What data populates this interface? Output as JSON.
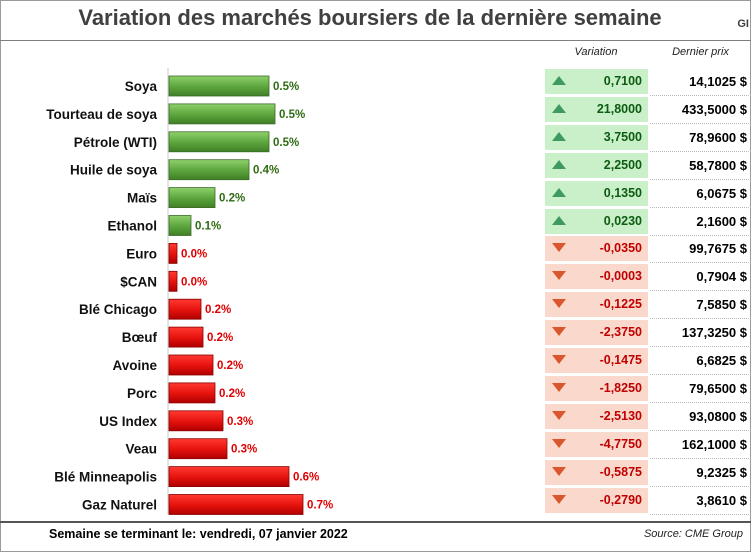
{
  "title": "Variation des marchés boursiers de la dernière semaine",
  "corner_text": "GI",
  "headers": {
    "variation": "Variation",
    "price": "Dernier prix"
  },
  "colors": {
    "up_bar": "#5fa83f",
    "down_bar": "#e8140f",
    "up_text": "#2e6b12",
    "down_text": "#e00000",
    "up_cell": "#c9f0c9",
    "down_cell": "#fad9cc"
  },
  "chart_data": {
    "type": "bar",
    "orientation": "horizontal",
    "categories": [
      "Soya",
      "Tourteau de soya",
      "Pétrole (WTI)",
      "Huile de soya",
      "Maïs",
      "Ethanol",
      "Euro",
      "$CAN",
      "Blé Chicago",
      "Bœuf",
      "Avoine",
      "Porc",
      "US Index",
      "Veau",
      "Blé Minneapolis",
      "Gaz Naturel"
    ],
    "values": [
      0.5,
      0.5,
      0.5,
      0.4,
      0.2,
      0.1,
      0.0,
      0.0,
      0.2,
      0.2,
      0.2,
      0.2,
      0.3,
      0.3,
      0.6,
      0.7
    ],
    "magnitudes": [
      0.005,
      0.0053,
      0.005,
      0.004,
      0.0023,
      0.0011,
      0.0004,
      0.0004,
      0.0016,
      0.0017,
      0.0022,
      0.0023,
      0.0027,
      0.0029,
      0.006,
      0.0067
    ],
    "direction": [
      "up",
      "up",
      "up",
      "up",
      "up",
      "up",
      "down",
      "down",
      "down",
      "down",
      "down",
      "down",
      "down",
      "down",
      "down",
      "down"
    ],
    "labels": [
      "0.5%",
      "0.5%",
      "0.5%",
      "0.4%",
      "0.2%",
      "0.1%",
      "0.0%",
      "0.0%",
      "0.2%",
      "0.2%",
      "0.2%",
      "0.2%",
      "0.3%",
      "0.3%",
      "0.6%",
      "0.7%"
    ]
  },
  "table": {
    "rows": [
      {
        "dir": "up",
        "variation": "0,7100",
        "price": "14,1025 $"
      },
      {
        "dir": "up",
        "variation": "21,8000",
        "price": "433,5000 $"
      },
      {
        "dir": "up",
        "variation": "3,7500",
        "price": "78,9600 $"
      },
      {
        "dir": "up",
        "variation": "2,2500",
        "price": "58,7800 $"
      },
      {
        "dir": "up",
        "variation": "0,1350",
        "price": "6,0675 $"
      },
      {
        "dir": "up",
        "variation": "0,0230",
        "price": "2,1600 $"
      },
      {
        "dir": "down",
        "variation": "-0,0350",
        "price": "99,7675 $"
      },
      {
        "dir": "down",
        "variation": "-0,0003",
        "price": "0,7904 $"
      },
      {
        "dir": "down",
        "variation": "-0,1225",
        "price": "7,5850 $"
      },
      {
        "dir": "down",
        "variation": "-2,3750",
        "price": "137,3250 $"
      },
      {
        "dir": "down",
        "variation": "-0,1475",
        "price": "6,6825 $"
      },
      {
        "dir": "down",
        "variation": "-1,8250",
        "price": "79,6500 $"
      },
      {
        "dir": "down",
        "variation": "-2,5130",
        "price": "93,0800 $"
      },
      {
        "dir": "down",
        "variation": "-4,7750",
        "price": "162,1000 $"
      },
      {
        "dir": "down",
        "variation": "-0,5875",
        "price": "9,2325 $"
      },
      {
        "dir": "down",
        "variation": "-0,2790",
        "price": "3,8610 $"
      }
    ]
  },
  "footer": {
    "week_label": "Semaine se terminant le: vendredi, 07 janvier 2022",
    "source": "Source: CME Group"
  }
}
